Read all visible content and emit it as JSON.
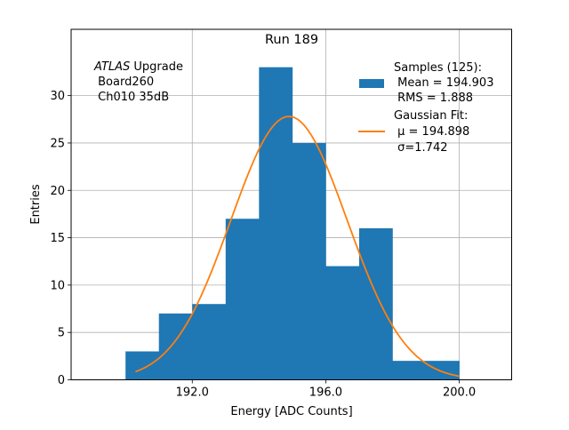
{
  "chart_data": {
    "type": "bar",
    "title": "Run 189",
    "xlabel": "Energy [ADC Counts]",
    "ylabel": "Entries",
    "xlim": [
      188.37,
      201.57
    ],
    "ylim": [
      0,
      37
    ],
    "grid": true,
    "xticks": [
      192.0,
      196.0,
      200.0
    ],
    "xtick_labels": [
      "192.0",
      "196.0",
      "200.0"
    ],
    "yticks": [
      0,
      5,
      10,
      15,
      20,
      25,
      30
    ],
    "ytick_labels": [
      "0",
      "5",
      "10",
      "15",
      "20",
      "25",
      "30"
    ],
    "histogram": {
      "bin_edges": [
        190,
        191,
        192,
        193,
        194,
        195,
        196,
        197,
        198,
        199,
        200
      ],
      "counts": [
        3,
        7,
        8,
        17,
        33,
        25,
        12,
        16,
        2,
        2
      ],
      "color": "#1f77b4"
    },
    "fit": {
      "name": "Gaussian Fit",
      "mu": 194.898,
      "sigma": 1.742,
      "amplitude": 27.8,
      "x_range": [
        190.3,
        200.0
      ],
      "color": "#ff7f0e"
    },
    "annotation": {
      "lines": [
        "ATLAS Upgrade",
        " Board260",
        " Ch010 35dB"
      ],
      "italic_word": "ATLAS",
      "placement": "top-left"
    },
    "legend": {
      "placement": "top-right",
      "entries": [
        {
          "kind": "patch",
          "color": "#1f77b4",
          "lines": [
            "Samples (125):",
            " Mean = 194.903",
            " RMS = 1.888"
          ]
        },
        {
          "kind": "line",
          "color": "#ff7f0e",
          "lines": [
            "Gaussian Fit:",
            " μ = 194.898",
            " σ=1.742"
          ]
        }
      ]
    }
  }
}
